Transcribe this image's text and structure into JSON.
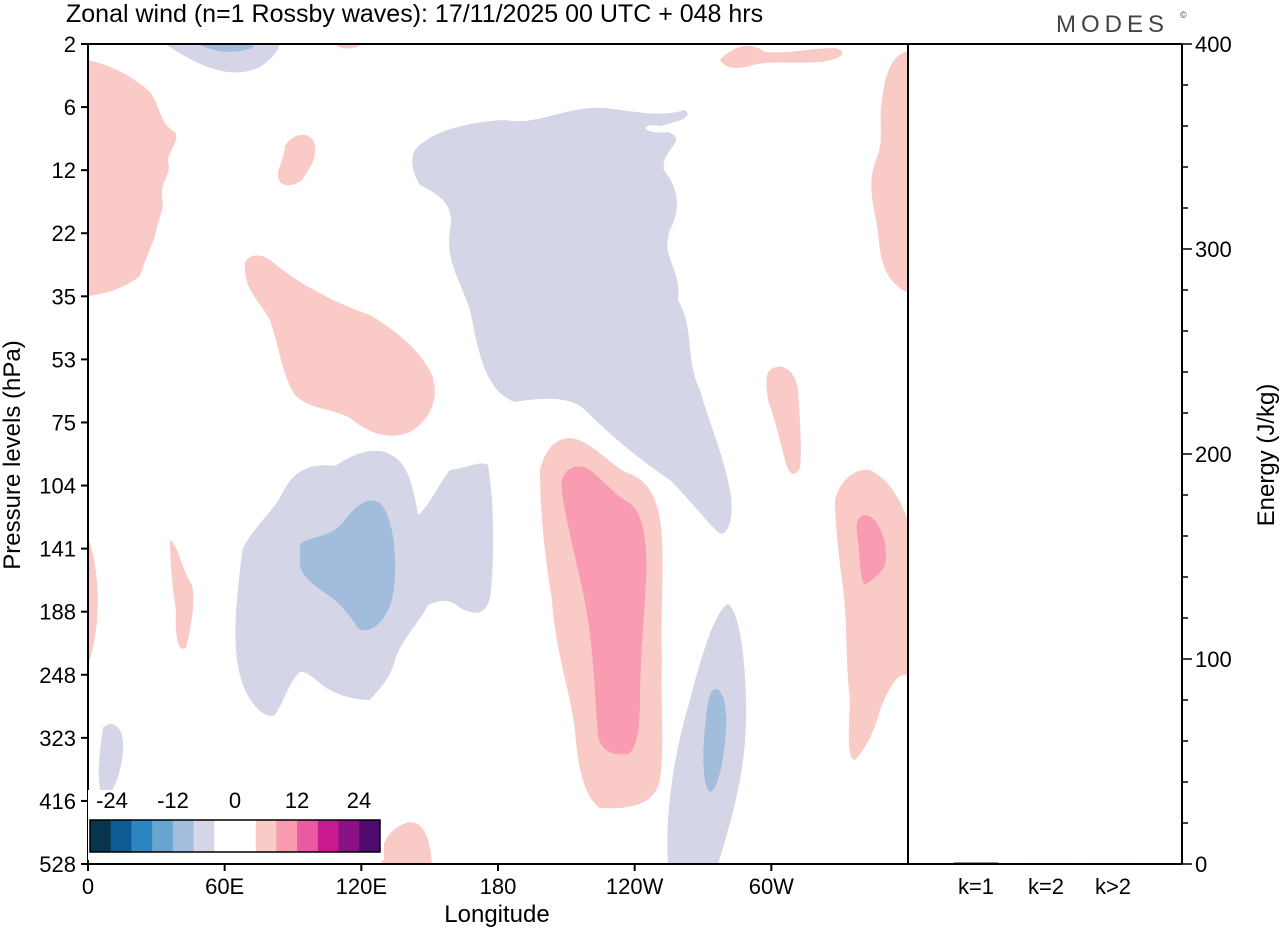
{
  "chart_data": {
    "type": "contour",
    "title": "Zonal wind (n=1 Rossby waves):  17/11/2025  00 UTC  + 048 hrs",
    "brand": "MODES",
    "brand_mark": "©",
    "xlabel": "Longitude",
    "ylabel": "Pressure levels (hPa)",
    "x_ticks": [
      "0",
      "60E",
      "120E",
      "180",
      "120W",
      "60W"
    ],
    "y_ticks": [
      "2",
      "6",
      "12",
      "22",
      "35",
      "53",
      "75",
      "104",
      "141",
      "188",
      "248",
      "323",
      "416",
      "528"
    ],
    "colorbar": {
      "labels": [
        "-24",
        "-12",
        "0",
        "12",
        "24"
      ],
      "colors": [
        "#08364f",
        "#0d5b92",
        "#2c84c0",
        "#68a6d0",
        "#a3bedc",
        "#d5d7e8",
        "#ffffff",
        "#ffffff",
        "#f9cac6",
        "#f99cb2",
        "#ea5aa2",
        "#c8198e",
        "#8a1185",
        "#4f0a6e"
      ]
    },
    "contour_colors": {
      "neg_weak": "#d4d6e7",
      "neg_mod": "#a2bcdb",
      "pos_weak": "#f9cac6",
      "pos_mod": "#f99cb2"
    },
    "energy_panel": {
      "type": "bar",
      "ylabel": "Energy (J/kg)",
      "ylim": [
        0,
        400
      ],
      "y_ticks": [
        "0",
        "100",
        "200",
        "300",
        "400"
      ],
      "categories": [
        "k=1",
        "k=2",
        "k>2"
      ],
      "values": [
        0.8,
        0.5,
        0.5
      ]
    }
  }
}
